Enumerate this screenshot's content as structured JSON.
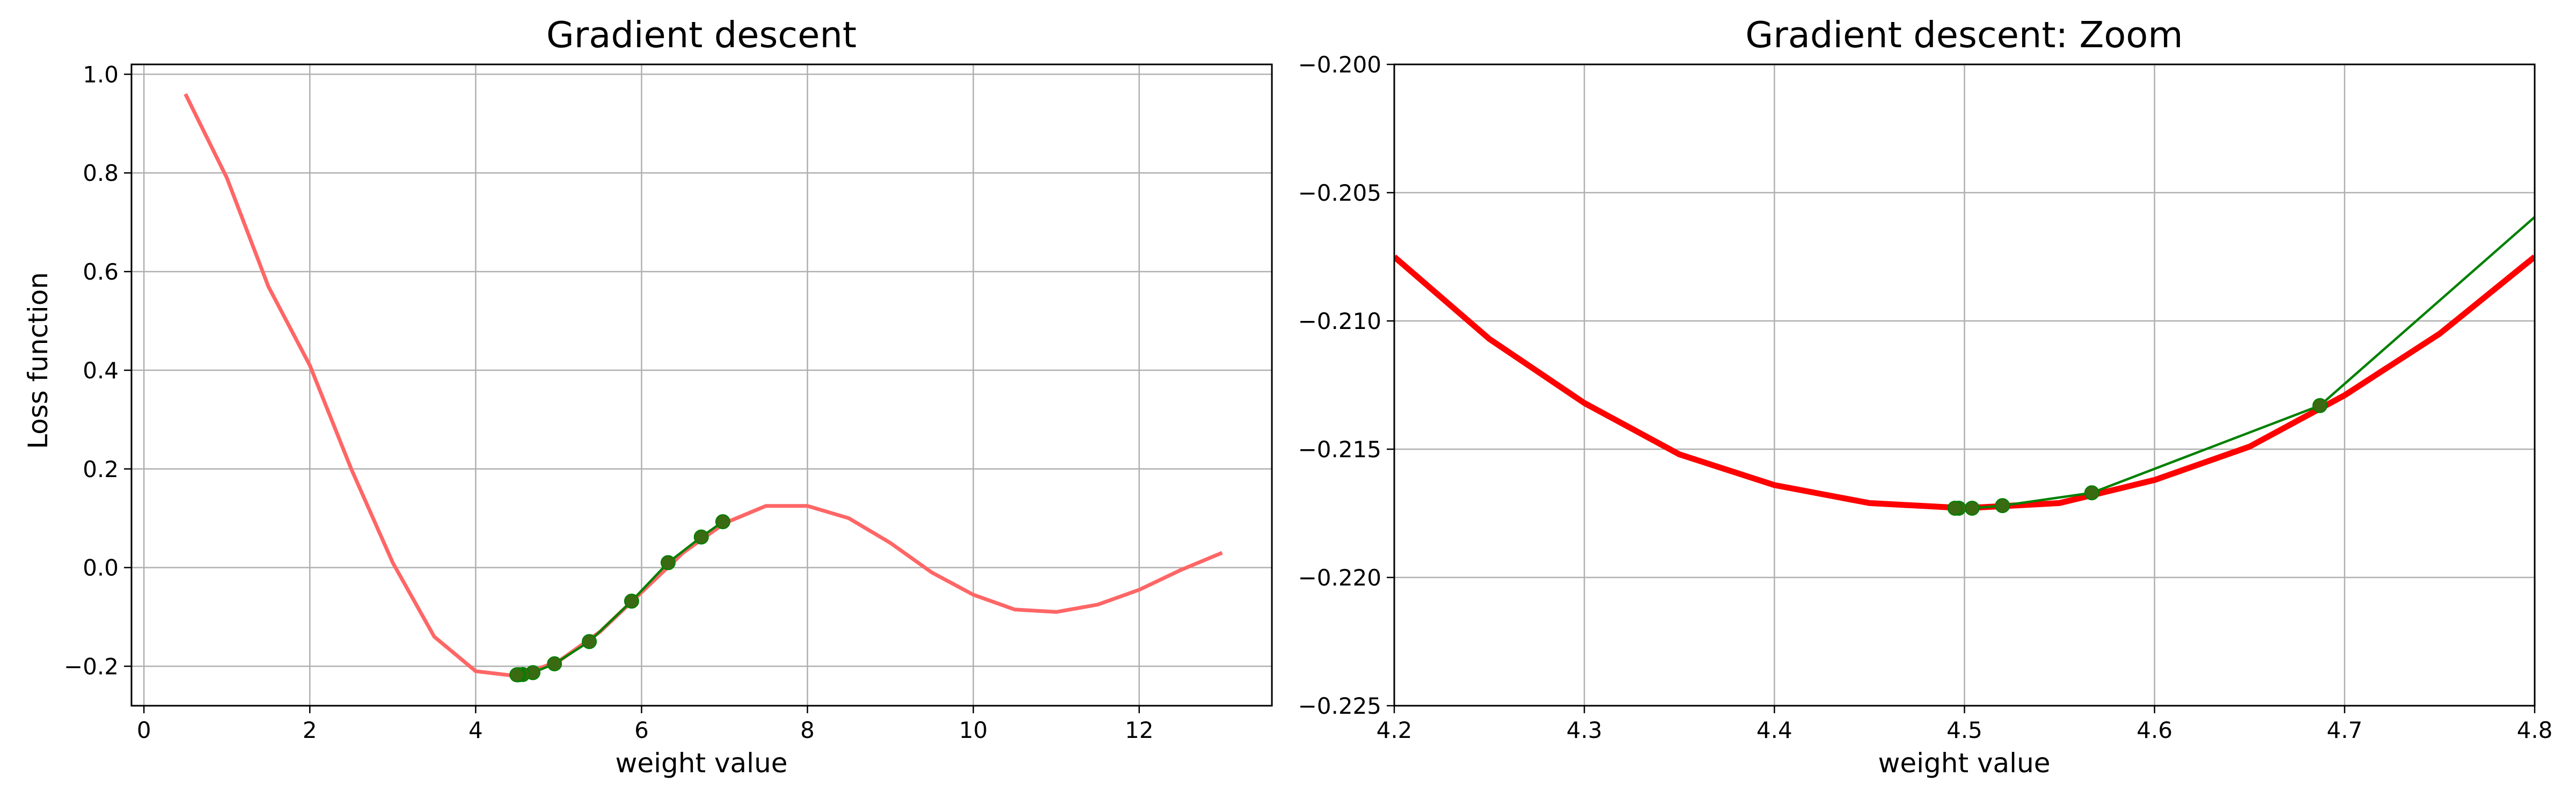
{
  "chart_data": [
    {
      "type": "line",
      "title": "Gradient descent",
      "xlabel": "weight value",
      "ylabel": "Loss function",
      "xlim": [
        -0.15,
        13.6
      ],
      "ylim": [
        -0.28,
        1.02
      ],
      "xticks": [
        0,
        2,
        4,
        6,
        8,
        10,
        12
      ],
      "xtick_labels": [
        "0",
        "2",
        "4",
        "6",
        "8",
        "10",
        "12"
      ],
      "yticks": [
        -0.2,
        0.0,
        0.2,
        0.4,
        0.6,
        0.8,
        1.0
      ],
      "ytick_labels": [
        "−0.2",
        "0.0",
        "0.2",
        "0.4",
        "0.6",
        "0.8",
        "1.0"
      ],
      "grid": true,
      "series": [
        {
          "kind": "curve",
          "color": "#ff6666",
          "x": [
            0.5,
            1.0,
            1.5,
            2.0,
            2.5,
            3.0,
            3.5,
            4.0,
            4.5,
            5.0,
            5.5,
            6.0,
            6.5,
            7.0,
            7.5,
            8.0,
            8.5,
            9.0,
            9.5,
            10.0,
            10.5,
            11.0,
            11.5,
            12.0,
            12.5,
            13.0
          ],
          "y": [
            0.96,
            0.79,
            0.57,
            0.41,
            0.2,
            0.01,
            -0.14,
            -0.21,
            -0.22,
            -0.19,
            -0.13,
            -0.05,
            0.03,
            0.09,
            0.125,
            0.125,
            0.1,
            0.05,
            -0.01,
            -0.055,
            -0.085,
            -0.09,
            -0.075,
            -0.045,
            -0.005,
            0.03
          ]
        },
        {
          "kind": "descent-path",
          "color": "#008000",
          "marker": "circle",
          "x": [
            6.98,
            6.72,
            6.32,
            5.88,
            5.37,
            4.95,
            4.69,
            4.567,
            4.52,
            4.504,
            4.497
          ],
          "y": [
            0.093,
            0.062,
            0.01,
            -0.068,
            -0.15,
            -0.195,
            -0.213,
            -0.2167,
            -0.2172,
            -0.2173,
            -0.2173
          ]
        }
      ]
    },
    {
      "type": "line",
      "title": "Gradient descent: Zoom",
      "xlabel": "weight value",
      "ylabel": "",
      "xlim": [
        4.2,
        4.8
      ],
      "ylim": [
        -0.225,
        -0.2
      ],
      "xticks": [
        4.2,
        4.3,
        4.4,
        4.5,
        4.6,
        4.7,
        4.8
      ],
      "xtick_labels": [
        "4.2",
        "4.3",
        "4.4",
        "4.5",
        "4.6",
        "4.7",
        "4.8"
      ],
      "yticks": [
        -0.225,
        -0.22,
        -0.215,
        -0.21,
        -0.205,
        -0.2
      ],
      "ytick_labels": [
        "−0.225",
        "−0.220",
        "−0.215",
        "−0.210",
        "−0.205",
        "−0.200"
      ],
      "grid": true,
      "series": [
        {
          "kind": "curve",
          "color": "#ff0000",
          "x": [
            4.2,
            4.25,
            4.3,
            4.35,
            4.4,
            4.45,
            4.5,
            4.55,
            4.6,
            4.65,
            4.7,
            4.75,
            4.8
          ],
          "y": [
            -0.2075,
            -0.2107,
            -0.2132,
            -0.2152,
            -0.2164,
            -0.2171,
            -0.2173,
            -0.2171,
            -0.2162,
            -0.2149,
            -0.2129,
            -0.2105,
            -0.2075
          ]
        },
        {
          "kind": "descent-path",
          "color": "#008000",
          "marker": "circle",
          "x": [
            4.81,
            4.687,
            4.567,
            4.52,
            4.504,
            4.497,
            4.495
          ],
          "y": [
            -0.2053,
            -0.2133,
            -0.2167,
            -0.2172,
            -0.2173,
            -0.2173,
            -0.2173
          ]
        }
      ]
    }
  ]
}
